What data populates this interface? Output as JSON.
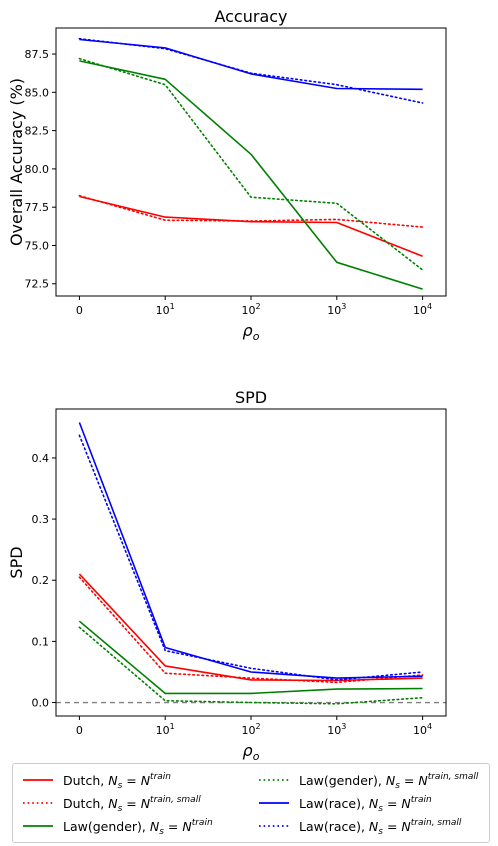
{
  "chart_data": [
    {
      "type": "line",
      "title": "Accuracy",
      "xlabel": "ρ",
      "xlabel_sub": "o",
      "ylabel": "Overall Accuracy (%)",
      "x": [
        0,
        10,
        100,
        1000,
        10000
      ],
      "x_tick_labels": [
        {
          "base": "0",
          "exp": ""
        },
        {
          "base": "10",
          "exp": "1"
        },
        {
          "base": "10",
          "exp": "2"
        },
        {
          "base": "10",
          "exp": "3"
        },
        {
          "base": "10",
          "exp": "4"
        }
      ],
      "x_scale": "symlog",
      "ylim": [
        71.7,
        89.2
      ],
      "y_ticks": [
        "72.5",
        "75.0",
        "77.5",
        "80.0",
        "82.5",
        "85.0",
        "87.5"
      ],
      "grid": false,
      "series": [
        {
          "name": "Dutch, N_s = N^train",
          "color": "#ff0000",
          "dash": "solid",
          "values": [
            78.2,
            76.85,
            76.55,
            76.5,
            74.3
          ]
        },
        {
          "name": "Dutch, N_s = N^train,small",
          "color": "#ff0000",
          "dash": "dotted",
          "values": [
            78.25,
            76.65,
            76.6,
            76.7,
            76.2
          ]
        },
        {
          "name": "Law(gender), N_s = N^train",
          "color": "#008000",
          "dash": "solid",
          "values": [
            87.05,
            85.85,
            80.95,
            73.9,
            72.15
          ]
        },
        {
          "name": "Law(gender), N_s = N^train,small",
          "color": "#008000",
          "dash": "dotted",
          "values": [
            87.2,
            85.5,
            78.15,
            77.75,
            73.4
          ]
        },
        {
          "name": "Law(race), N_s = N^train",
          "color": "#0000ff",
          "dash": "solid",
          "values": [
            88.45,
            87.9,
            86.2,
            85.25,
            85.2
          ]
        },
        {
          "name": "Law(race), N_s = N^train,small",
          "color": "#0000ff",
          "dash": "dotted",
          "values": [
            88.5,
            87.85,
            86.25,
            85.5,
            84.3
          ]
        }
      ]
    },
    {
      "type": "line",
      "title": "SPD",
      "xlabel": "ρ",
      "xlabel_sub": "o",
      "ylabel": "SPD",
      "x": [
        0,
        10,
        100,
        1000,
        10000
      ],
      "x_tick_labels": [
        {
          "base": "0",
          "exp": ""
        },
        {
          "base": "10",
          "exp": "1"
        },
        {
          "base": "10",
          "exp": "2"
        },
        {
          "base": "10",
          "exp": "3"
        },
        {
          "base": "10",
          "exp": "4"
        }
      ],
      "x_scale": "symlog",
      "ylim": [
        -0.022,
        0.48
      ],
      "y_ticks": [
        "0.0",
        "0.1",
        "0.2",
        "0.3",
        "0.4"
      ],
      "reference_line": {
        "y": 0,
        "color": "#808080",
        "dash": "dashed"
      },
      "grid": false,
      "series": [
        {
          "name": "Dutch, N_s = N^train",
          "color": "#ff0000",
          "dash": "solid",
          "values": [
            0.21,
            0.06,
            0.037,
            0.036,
            0.04
          ]
        },
        {
          "name": "Dutch, N_s = N^train,small",
          "color": "#ff0000",
          "dash": "dotted",
          "values": [
            0.205,
            0.048,
            0.04,
            0.033,
            0.045
          ]
        },
        {
          "name": "Law(gender), N_s = N^train",
          "color": "#008000",
          "dash": "solid",
          "values": [
            0.133,
            0.015,
            0.015,
            0.022,
            0.023
          ]
        },
        {
          "name": "Law(gender), N_s = N^train,small",
          "color": "#008000",
          "dash": "dotted",
          "values": [
            0.123,
            0.003,
            0.0,
            -0.002,
            0.008
          ]
        },
        {
          "name": "Law(race), N_s = N^train",
          "color": "#0000ff",
          "dash": "solid",
          "values": [
            0.458,
            0.09,
            0.05,
            0.04,
            0.043
          ]
        },
        {
          "name": "Law(race), N_s = N^train,small",
          "color": "#0000ff",
          "dash": "dotted",
          "values": [
            0.437,
            0.085,
            0.056,
            0.037,
            0.05
          ]
        }
      ]
    }
  ],
  "legend": {
    "placement": "bottom",
    "entries": [
      {
        "label": "Dutch, ",
        "sub": "s",
        "sup": "train",
        "color": "#ff0000",
        "dash": "solid"
      },
      {
        "label": "Dutch, ",
        "sub": "s",
        "sup": "train, small",
        "color": "#ff0000",
        "dash": "dotted"
      },
      {
        "label": "Law(gender), ",
        "sub": "s",
        "sup": "train",
        "color": "#008000",
        "dash": "solid"
      },
      {
        "label": "Law(gender), ",
        "sub": "s",
        "sup": "train, small",
        "color": "#008000",
        "dash": "dotted"
      },
      {
        "label": "Law(race), ",
        "sub": "s",
        "sup": "train",
        "color": "#0000ff",
        "dash": "solid"
      },
      {
        "label": "Law(race), ",
        "sub": "s",
        "sup": "train, small",
        "color": "#0000ff",
        "dash": "dotted"
      }
    ],
    "n_symbol": "N",
    "eq_symbol": " = ",
    "n_rhs": "N"
  }
}
